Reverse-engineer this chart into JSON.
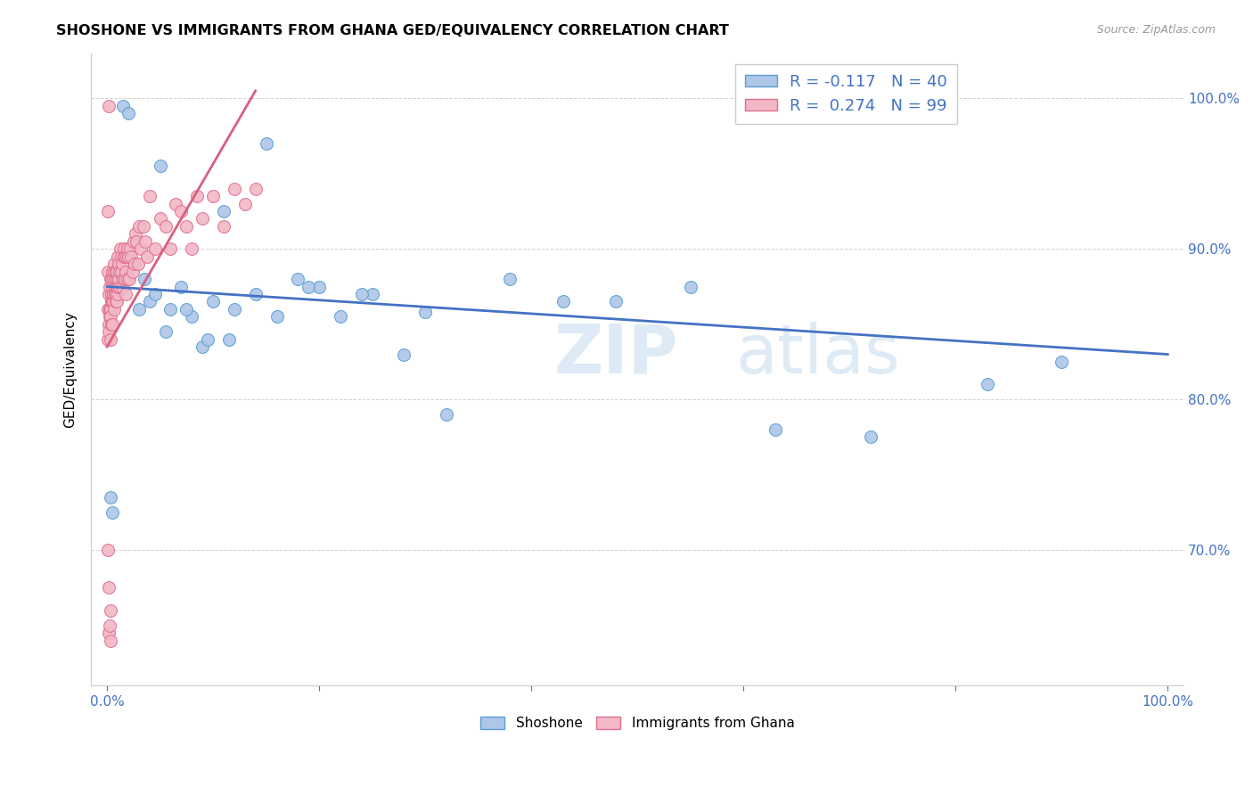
{
  "title": "SHOSHONE VS IMMIGRANTS FROM GHANA GED/EQUIVALENCY CORRELATION CHART",
  "source": "Source: ZipAtlas.com",
  "ylabel": "GED/Equivalency",
  "blue_color": "#aec6e8",
  "pink_color": "#f2b8c6",
  "blue_edge_color": "#5a9fd4",
  "pink_edge_color": "#e07090",
  "blue_line_color": "#4472c4",
  "pink_line_color": "#d95f7f",
  "xlim": [
    -1.5,
    101.5
  ],
  "ylim": [
    61,
    103
  ],
  "shoshone_x": [
    0.3,
    0.5,
    1.5,
    2.0,
    3.0,
    4.0,
    4.5,
    5.0,
    6.0,
    7.0,
    8.0,
    9.0,
    10.0,
    11.0,
    12.0,
    14.0,
    16.0,
    18.0,
    20.0,
    22.0,
    25.0,
    28.0,
    32.0,
    38.0,
    43.0,
    55.0,
    63.0,
    72.0,
    83.0,
    90.0,
    3.5,
    5.5,
    7.5,
    9.5,
    11.5,
    15.0,
    19.0,
    24.0,
    30.0,
    48.0
  ],
  "shoshone_y": [
    73.5,
    72.5,
    99.5,
    99.0,
    86.0,
    86.5,
    87.0,
    95.5,
    86.0,
    87.5,
    85.5,
    83.5,
    86.5,
    92.5,
    86.0,
    87.0,
    85.5,
    88.0,
    87.5,
    85.5,
    87.0,
    83.0,
    79.0,
    88.0,
    86.5,
    87.5,
    78.0,
    77.5,
    81.0,
    82.5,
    88.0,
    84.5,
    86.0,
    84.0,
    84.0,
    97.0,
    87.5,
    87.0,
    85.8,
    86.5
  ],
  "ghana_x": [
    0.05,
    0.08,
    0.1,
    0.12,
    0.15,
    0.15,
    0.18,
    0.2,
    0.22,
    0.25,
    0.28,
    0.3,
    0.3,
    0.32,
    0.35,
    0.38,
    0.4,
    0.42,
    0.45,
    0.48,
    0.5,
    0.5,
    0.52,
    0.55,
    0.58,
    0.6,
    0.62,
    0.65,
    0.68,
    0.7,
    0.72,
    0.75,
    0.78,
    0.8,
    0.82,
    0.85,
    0.88,
    0.9,
    0.92,
    0.95,
    0.98,
    1.0,
    1.0,
    1.05,
    1.1,
    1.15,
    1.2,
    1.25,
    1.3,
    1.35,
    1.4,
    1.45,
    1.5,
    1.55,
    1.6,
    1.65,
    1.7,
    1.75,
    1.8,
    1.85,
    1.9,
    1.95,
    2.0,
    2.1,
    2.2,
    2.3,
    2.4,
    2.5,
    2.6,
    2.7,
    2.8,
    2.9,
    3.0,
    3.2,
    3.4,
    3.6,
    3.8,
    4.0,
    4.5,
    5.0,
    5.5,
    6.0,
    6.5,
    7.0,
    7.5,
    8.0,
    8.5,
    9.0,
    10.0,
    11.0,
    12.0,
    13.0,
    14.0,
    0.1,
    0.15,
    0.2,
    0.25,
    0.3,
    0.35
  ],
  "ghana_y": [
    86.0,
    84.0,
    92.5,
    88.5,
    85.0,
    99.5,
    87.0,
    84.5,
    86.0,
    85.5,
    87.5,
    86.0,
    88.0,
    85.5,
    84.0,
    87.0,
    86.5,
    88.0,
    85.0,
    87.5,
    86.5,
    88.5,
    85.0,
    87.0,
    86.5,
    88.0,
    87.0,
    89.0,
    88.5,
    86.0,
    87.5,
    88.0,
    87.0,
    86.5,
    88.5,
    87.0,
    86.5,
    88.0,
    87.5,
    88.5,
    87.0,
    87.5,
    89.5,
    88.0,
    89.0,
    87.5,
    88.5,
    90.0,
    88.5,
    89.5,
    87.5,
    89.0,
    88.0,
    90.0,
    89.5,
    88.0,
    89.5,
    88.5,
    87.0,
    89.5,
    88.0,
    90.0,
    89.5,
    88.0,
    90.0,
    89.5,
    88.5,
    90.5,
    89.0,
    91.0,
    90.5,
    89.0,
    91.5,
    90.0,
    91.5,
    90.5,
    89.5,
    93.5,
    90.0,
    92.0,
    91.5,
    90.0,
    93.0,
    92.5,
    91.5,
    90.0,
    93.5,
    92.0,
    93.5,
    91.5,
    94.0,
    93.0,
    94.0,
    70.0,
    67.5,
    64.5,
    65.0,
    66.0,
    64.0
  ],
  "blue_trend_x": [
    0.0,
    100.0
  ],
  "blue_trend_y": [
    87.5,
    83.0
  ],
  "pink_trend_x": [
    0.0,
    14.0
  ],
  "pink_trend_y": [
    83.5,
    100.5
  ],
  "watermark_zip_x": 48,
  "watermark_zip_y": 83,
  "watermark_atlas_x": 67,
  "watermark_atlas_y": 83
}
